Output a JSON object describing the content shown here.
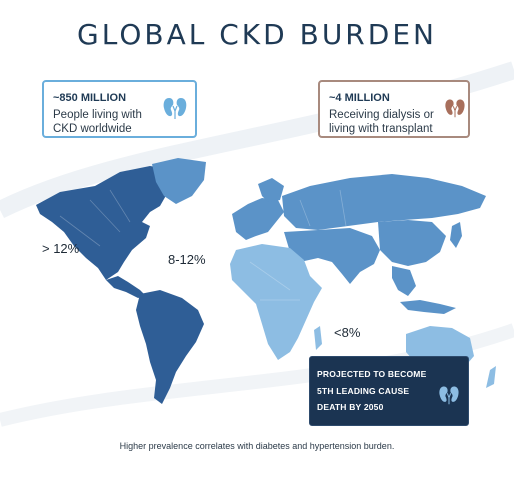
{
  "title": "GLOBAL CKD BURDEN",
  "cards": {
    "left": {
      "stat": "~850 MILLION",
      "line1": "People living with",
      "line2": "CKD worldwide",
      "icon": "kidneys-icon",
      "color": "#6aaedc"
    },
    "right": {
      "stat": "~4 MILLION",
      "line1": "Receiving dialysis or",
      "line2": "living with transplant",
      "icon": "kidneys-icon",
      "color": "#a86f5c"
    }
  },
  "regions": {
    "high": "> 12%",
    "mid": "8-12%",
    "low": "<8%"
  },
  "colors": {
    "high": "#2f5e96",
    "mid": "#5b93c8",
    "low": "#8dbde3",
    "callout": "#1b3452"
  },
  "callout": {
    "line1": "PROJECTED TO BECOME",
    "line2": "5TH LEADING CAUSE",
    "line3": "DEATH BY 2050",
    "icon": "kidneys-icon"
  },
  "footer": "Higher prevalence correlates with diabetes and hypertension burden."
}
